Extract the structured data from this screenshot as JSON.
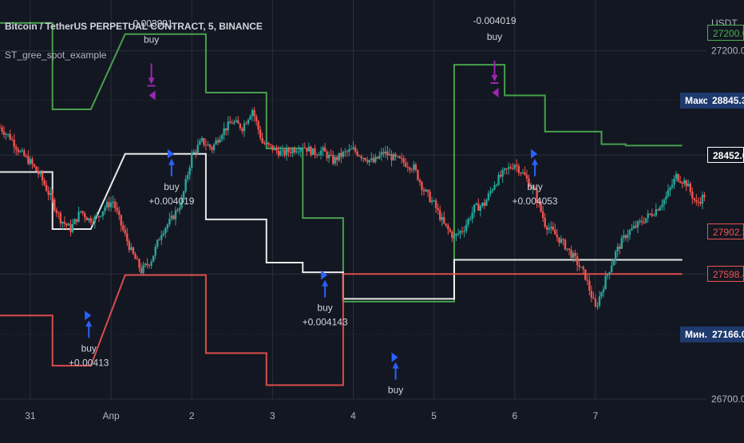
{
  "header": {
    "symbol_title": "Bitcoin / TetherUS PERPETUAL CONTRACT, 5, BINANCE",
    "indicator_name": "ST_gree_spot_example",
    "currency": "USDT"
  },
  "colors": {
    "background": "#131722",
    "grid": "#2a2e39",
    "text": "#d1d4dc",
    "axis_text": "#b2b5be",
    "candle_up": "#26a69a",
    "candle_down": "#ef5350",
    "line_green": "#4caf50",
    "line_white": "#ffffff",
    "line_red": "#ef5350",
    "buy_arrow": "#2962ff",
    "sell_arrow": "#9c27b0",
    "badge_bg": "#1e3a6e"
  },
  "chart_data": {
    "type": "candlestick",
    "ylim": [
      26700,
      29450
    ],
    "x_ticks": [
      "31",
      "Апр",
      "2",
      "3",
      "4",
      "5",
      "6",
      "7"
    ],
    "y_ticks": [
      26700,
      27166,
      27598.4,
      27902.3,
      28452.0,
      28845.3,
      29200.0
    ],
    "price_labels": [
      {
        "label": "Макс.",
        "value": "28845.3",
        "style": "badge"
      },
      {
        "label": "",
        "value": "28452.0",
        "style": "white"
      },
      {
        "label": "",
        "value": "27902.3",
        "style": "red"
      },
      {
        "label": "",
        "value": "27598.4",
        "style": "red"
      },
      {
        "label": "Мин.",
        "value": "27166.0",
        "style": "badge"
      },
      {
        "label": "",
        "value": "27200.0",
        "style": "green"
      }
    ],
    "price_series": {
      "name": "BTCUSDT",
      "x": [
        0,
        0.5,
        1,
        1.5,
        2,
        2.5,
        3,
        3.5,
        4,
        4.4,
        4.8,
        5.2,
        5.6,
        6,
        6.5,
        7,
        7.5,
        8,
        8.5,
        9,
        9.5,
        10,
        10.5,
        11,
        11.5,
        12,
        12.5,
        13,
        13.5,
        14,
        14.5,
        15,
        15.5,
        16,
        16.5,
        17,
        17.5,
        18,
        18.5,
        19,
        19.5,
        20,
        20.5,
        21,
        21.5,
        22,
        22.5,
        23,
        23.5,
        24,
        24.5,
        25,
        25.5,
        26,
        26.5,
        27,
        27.5,
        28,
        28.5,
        29,
        29.5,
        30,
        30.5,
        31,
        31.5,
        32,
        32.5,
        33,
        33.5,
        34,
        34.5,
        35
      ],
      "y": [
        28650,
        28580,
        28470,
        28400,
        28300,
        28150,
        27990,
        27920,
        28050,
        27990,
        28000,
        28080,
        28120,
        27950,
        27760,
        27620,
        27700,
        27900,
        27990,
        28120,
        28450,
        28550,
        28500,
        28620,
        28690,
        28650,
        28780,
        28540,
        28500,
        28460,
        28490,
        28520,
        28470,
        28480,
        28410,
        28460,
        28490,
        28440,
        28400,
        28470,
        28430,
        28400,
        28360,
        28200,
        28100,
        27950,
        27860,
        27930,
        28070,
        28100,
        28250,
        28330,
        28390,
        28300,
        28180,
        27960,
        27880,
        27800,
        27700,
        27580,
        27350,
        27560,
        27750,
        27880,
        27940,
        28000,
        28060,
        28150,
        28300,
        28250,
        28100,
        28180
      ]
    },
    "supertrend": [
      {
        "name": "upper",
        "color": "#4caf50",
        "points": [
          [
            0,
            29400
          ],
          [
            2.6,
            29400
          ],
          [
            2.6,
            28780
          ],
          [
            4.5,
            28780
          ],
          [
            6.2,
            29320
          ],
          [
            10.2,
            29320
          ],
          [
            10.2,
            28900
          ],
          [
            13.2,
            28900
          ],
          [
            13.2,
            28500
          ],
          [
            15,
            28500
          ],
          [
            15,
            28000
          ],
          [
            17,
            28000
          ],
          [
            17,
            27400
          ],
          [
            22.5,
            27400
          ],
          [
            22.5,
            29100
          ],
          [
            25,
            29100
          ],
          [
            25,
            28880
          ],
          [
            27,
            28880
          ],
          [
            27,
            28620
          ],
          [
            29.8,
            28620
          ],
          [
            29.8,
            28530
          ],
          [
            31,
            28530
          ],
          [
            31,
            28520
          ],
          [
            33.8,
            28520
          ]
        ]
      },
      {
        "name": "middle",
        "color": "#ffffff",
        "points": [
          [
            0,
            28330
          ],
          [
            2.6,
            28330
          ],
          [
            2.6,
            27920
          ],
          [
            4.5,
            27920
          ],
          [
            6.2,
            28460
          ],
          [
            10.2,
            28460
          ],
          [
            10.2,
            27990
          ],
          [
            13.2,
            27990
          ],
          [
            13.2,
            27680
          ],
          [
            15,
            27680
          ],
          [
            15,
            27610
          ],
          [
            17,
            27610
          ],
          [
            17,
            27420
          ],
          [
            22.5,
            27420
          ],
          [
            22.5,
            27700
          ],
          [
            25,
            27700
          ],
          [
            25,
            27700
          ],
          [
            27,
            27700
          ],
          [
            27,
            27700
          ],
          [
            29.8,
            27700
          ],
          [
            29.8,
            27700
          ],
          [
            31,
            27700
          ],
          [
            31,
            27700
          ],
          [
            33.8,
            27700
          ]
        ]
      },
      {
        "name": "lower",
        "color": "#ef5350",
        "points": [
          [
            0,
            27300
          ],
          [
            2.6,
            27300
          ],
          [
            2.6,
            26940
          ],
          [
            4.5,
            26940
          ],
          [
            6.2,
            27590
          ],
          [
            10.2,
            27590
          ],
          [
            10.2,
            27030
          ],
          [
            13.2,
            27030
          ],
          [
            13.2,
            26800
          ],
          [
            15,
            26800
          ],
          [
            15,
            26800
          ],
          [
            17,
            26800
          ],
          [
            17,
            27598
          ],
          [
            22.5,
            27598
          ],
          [
            22.5,
            27598
          ],
          [
            25,
            27598
          ],
          [
            25,
            27598
          ],
          [
            27,
            27598
          ],
          [
            27,
            27598
          ],
          [
            29.8,
            27598
          ],
          [
            29.8,
            27598
          ],
          [
            31,
            27598
          ],
          [
            31,
            27598
          ],
          [
            33.8,
            27598
          ]
        ]
      }
    ],
    "signals": [
      {
        "type": "buy",
        "label": "buy",
        "value": "+0.00413",
        "position": "below"
      },
      {
        "type": "sell",
        "label": "buy",
        "value": "-0.003991",
        "position": "above"
      },
      {
        "type": "buy",
        "label": "buy",
        "value": "+0.004019",
        "position": "below"
      },
      {
        "type": "buy",
        "label": "buy",
        "value": "+0.004143",
        "position": "below"
      },
      {
        "type": "buy",
        "label": "buy",
        "value": "",
        "position": "below"
      },
      {
        "type": "sell",
        "label": "buy",
        "value": "-0.004019",
        "position": "above"
      },
      {
        "type": "buy",
        "label": "buy",
        "value": "+0.004053",
        "position": "below"
      }
    ]
  }
}
